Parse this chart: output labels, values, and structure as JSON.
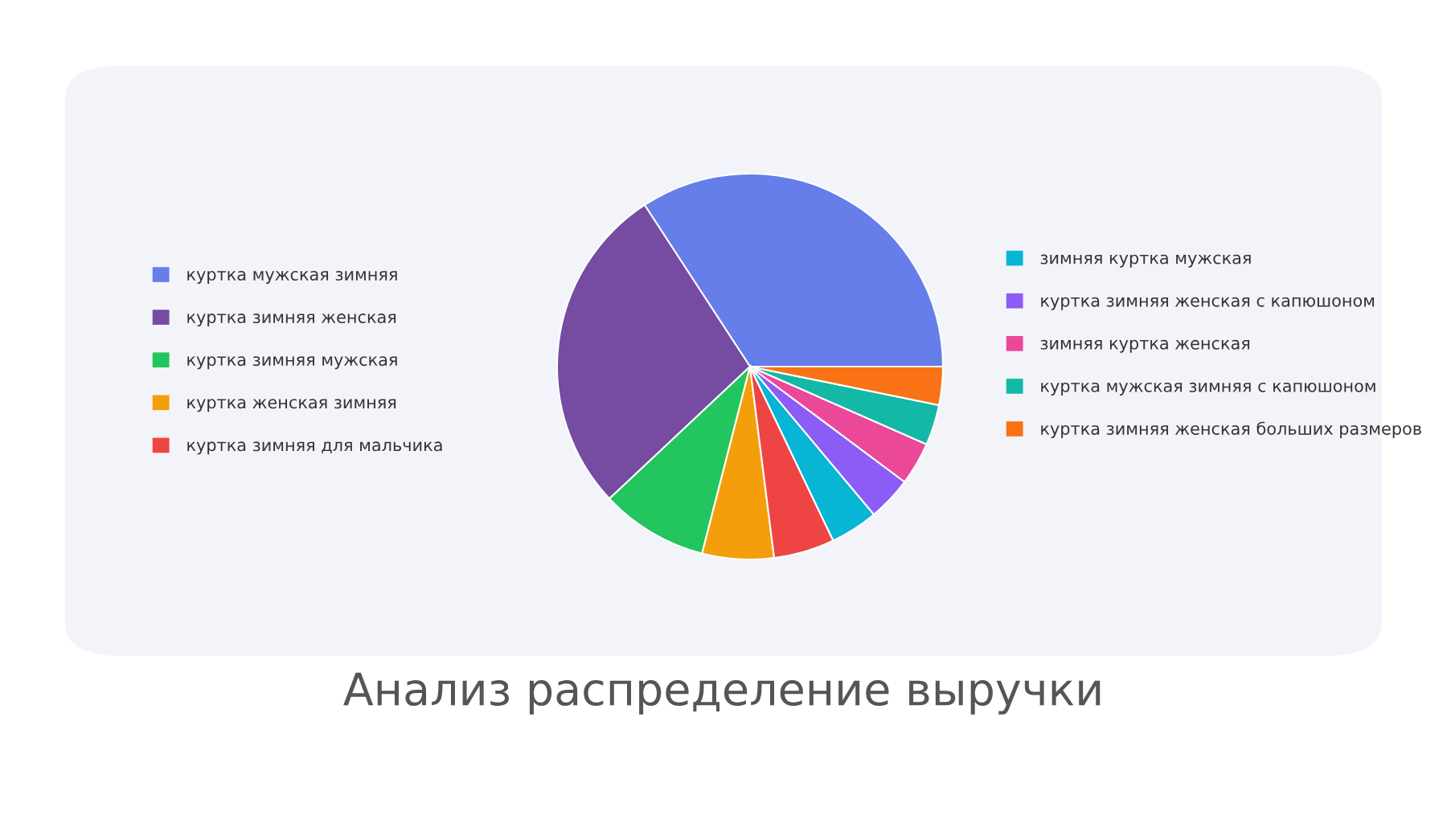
{
  "chart_data": {
    "type": "pie",
    "title": "Анализ распределение выручки",
    "categories": [
      "куртка мужская зимняя",
      "куртка зимняя женская",
      "куртка зимняя мужская",
      "куртка женская зимняя",
      "куртка зимняя для мальчика",
      "зимняя куртка мужская",
      "куртка зимняя женская с капюшоном",
      "зимняя куртка женская",
      "куртка мужская зимняя с капюшоном",
      "куртка зимняя женская больших размеров"
    ],
    "values": [
      34.2,
      27.8,
      9.0,
      6.0,
      5.1,
      4.0,
      3.7,
      3.6,
      3.4,
      3.2
    ],
    "colors": [
      "#667eea",
      "#764ba2",
      "#22c55e",
      "#f59e0b",
      "#ef4444",
      "#06b6d4",
      "#8b5cf6",
      "#ec4899",
      "#14b8a6",
      "#f97316"
    ],
    "legend": "top right"
  }
}
